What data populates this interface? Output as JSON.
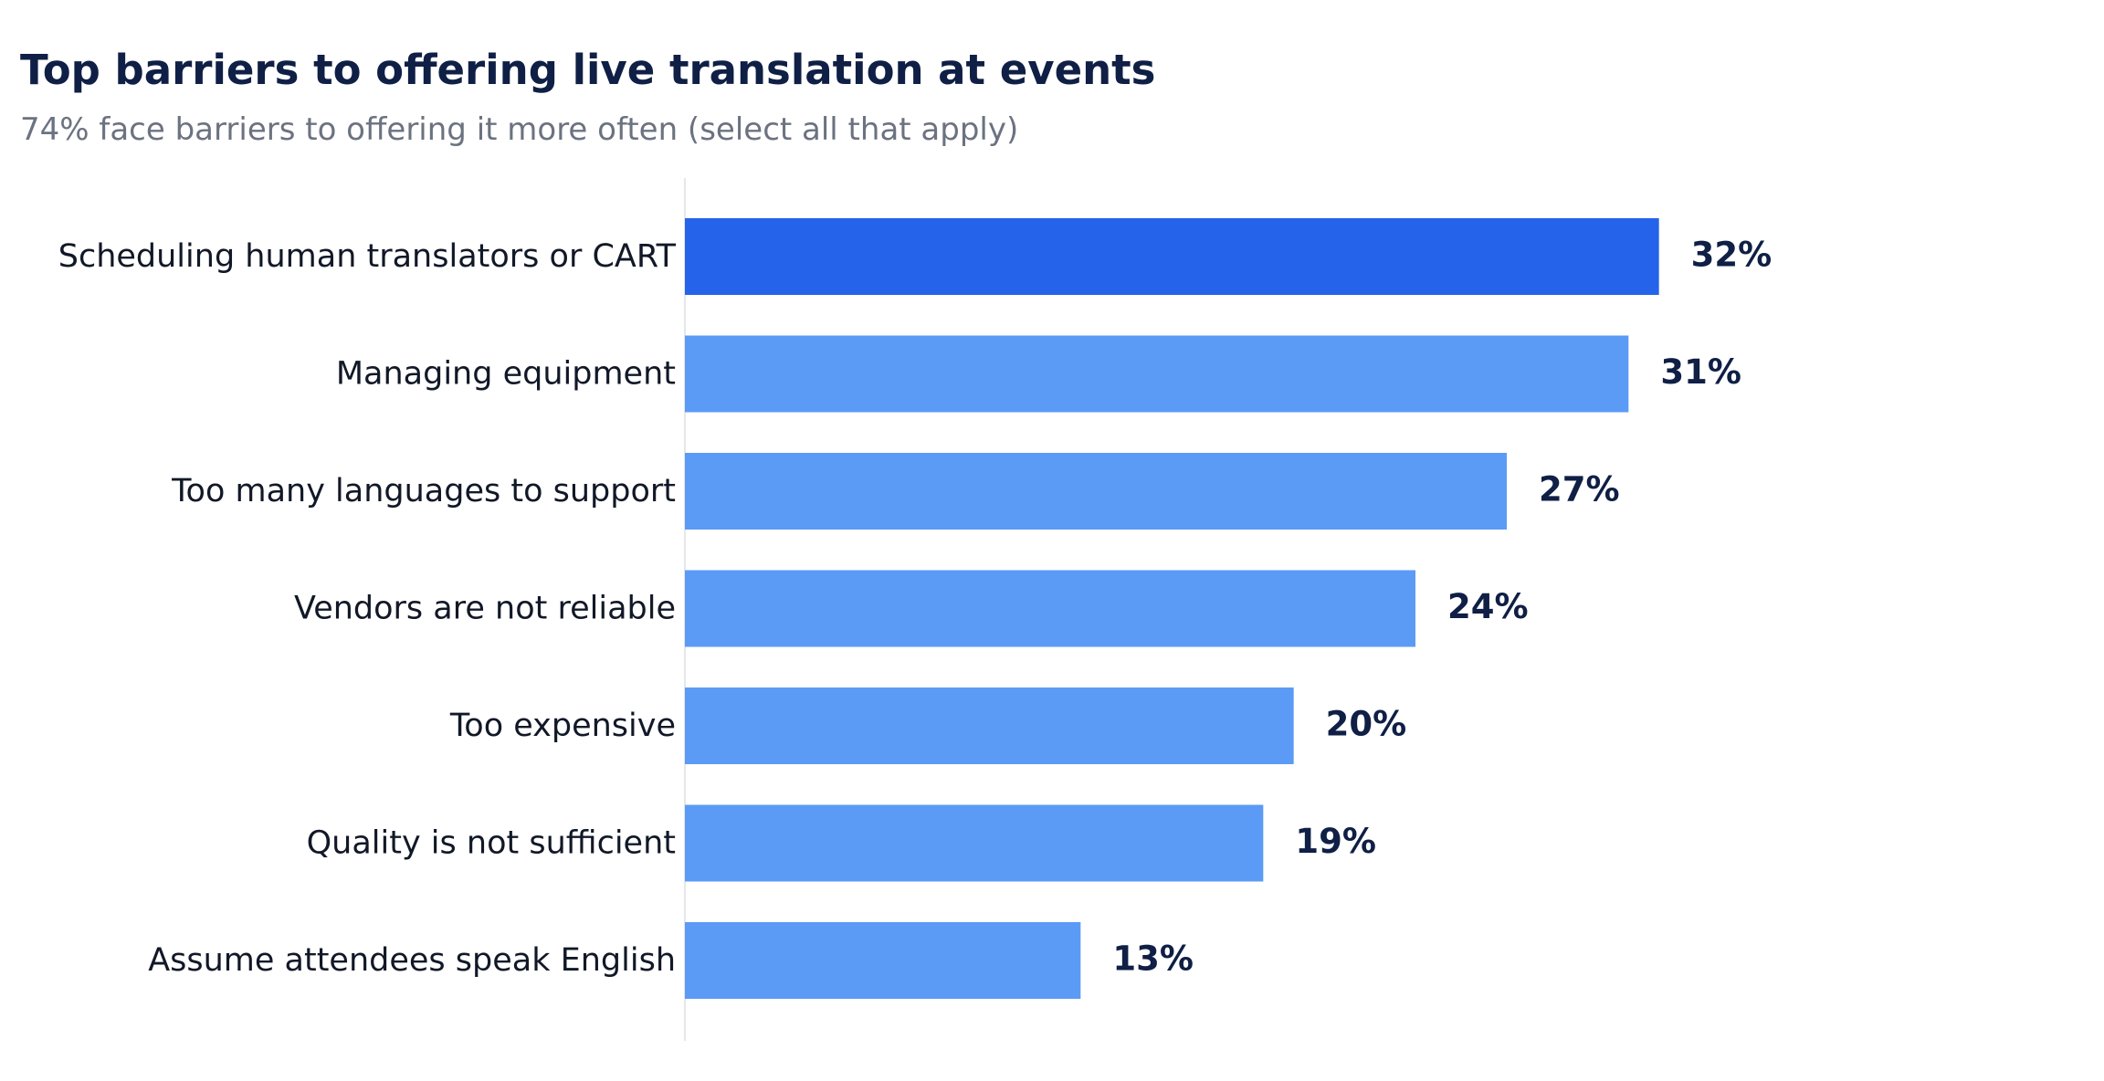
{
  "chart_data": {
    "type": "bar",
    "orientation": "horizontal",
    "title": "Top barriers to offering live translation at events",
    "subtitle": "74% face barriers to offering it more often (select all that apply)",
    "categories": [
      "Scheduling human translators or CART",
      "Managing equipment",
      "Too many languages to support",
      "Vendors are not reliable",
      "Too expensive",
      "Quality is not sufficient",
      "Assume attendees speak English"
    ],
    "values": [
      32,
      31,
      27,
      24,
      20,
      19,
      13
    ],
    "data_labels": [
      "32%",
      "31%",
      "27%",
      "24%",
      "20%",
      "19%",
      "13%"
    ],
    "xlim": [
      0,
      45
    ],
    "xlabel": "",
    "ylabel": "",
    "grid": false,
    "legend": "none",
    "colors": {
      "highlight_bar": "#2563eb",
      "bar": "#5b9bf6",
      "value_label": "#0f1f45",
      "category_label": "#111827",
      "axis_line": "#e5e7eb"
    },
    "highlight_index": 0
  }
}
